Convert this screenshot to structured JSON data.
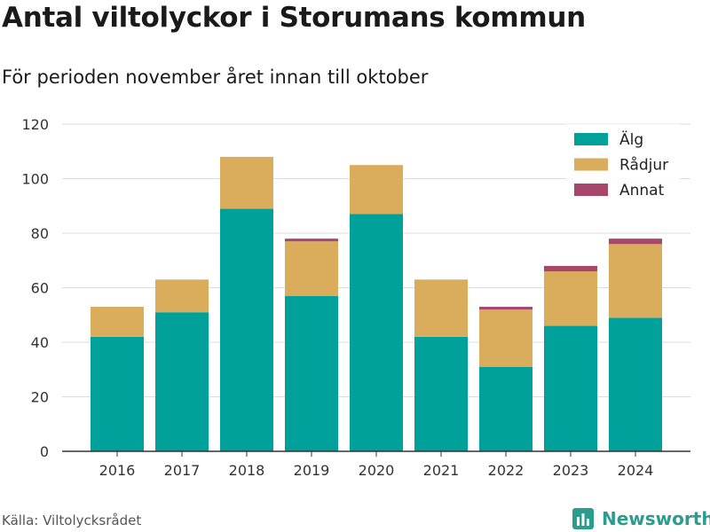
{
  "title": "Antal viltolyckor i Storumans kommun",
  "subtitle": "För perioden november året innan till oktober",
  "source": "Källa: Viltolycksrådet",
  "brand": "Newsworthy",
  "colors": {
    "alg": "#00a19a",
    "radjur": "#d9ad5b",
    "annat": "#a8466b",
    "brand": "#2a9d8f"
  },
  "chart_data": {
    "type": "bar",
    "stacked": true,
    "categories": [
      "2016",
      "2017",
      "2018",
      "2019",
      "2020",
      "2021",
      "2022",
      "2023",
      "2024"
    ],
    "series": [
      {
        "name": "Älg",
        "color": "#00a19a",
        "values": [
          42,
          51,
          89,
          57,
          87,
          42,
          31,
          46,
          49
        ]
      },
      {
        "name": "Rådjur",
        "color": "#d9ad5b",
        "values": [
          11,
          12,
          19,
          20,
          18,
          21,
          21,
          20,
          27
        ]
      },
      {
        "name": "Annat",
        "color": "#a8466b",
        "values": [
          0,
          0,
          0,
          1,
          0,
          0,
          1,
          2,
          2
        ]
      }
    ],
    "ylim": [
      0,
      120
    ],
    "yticks": [
      0,
      20,
      40,
      60,
      80,
      100,
      120
    ],
    "grid": true,
    "legend": "top-right"
  }
}
